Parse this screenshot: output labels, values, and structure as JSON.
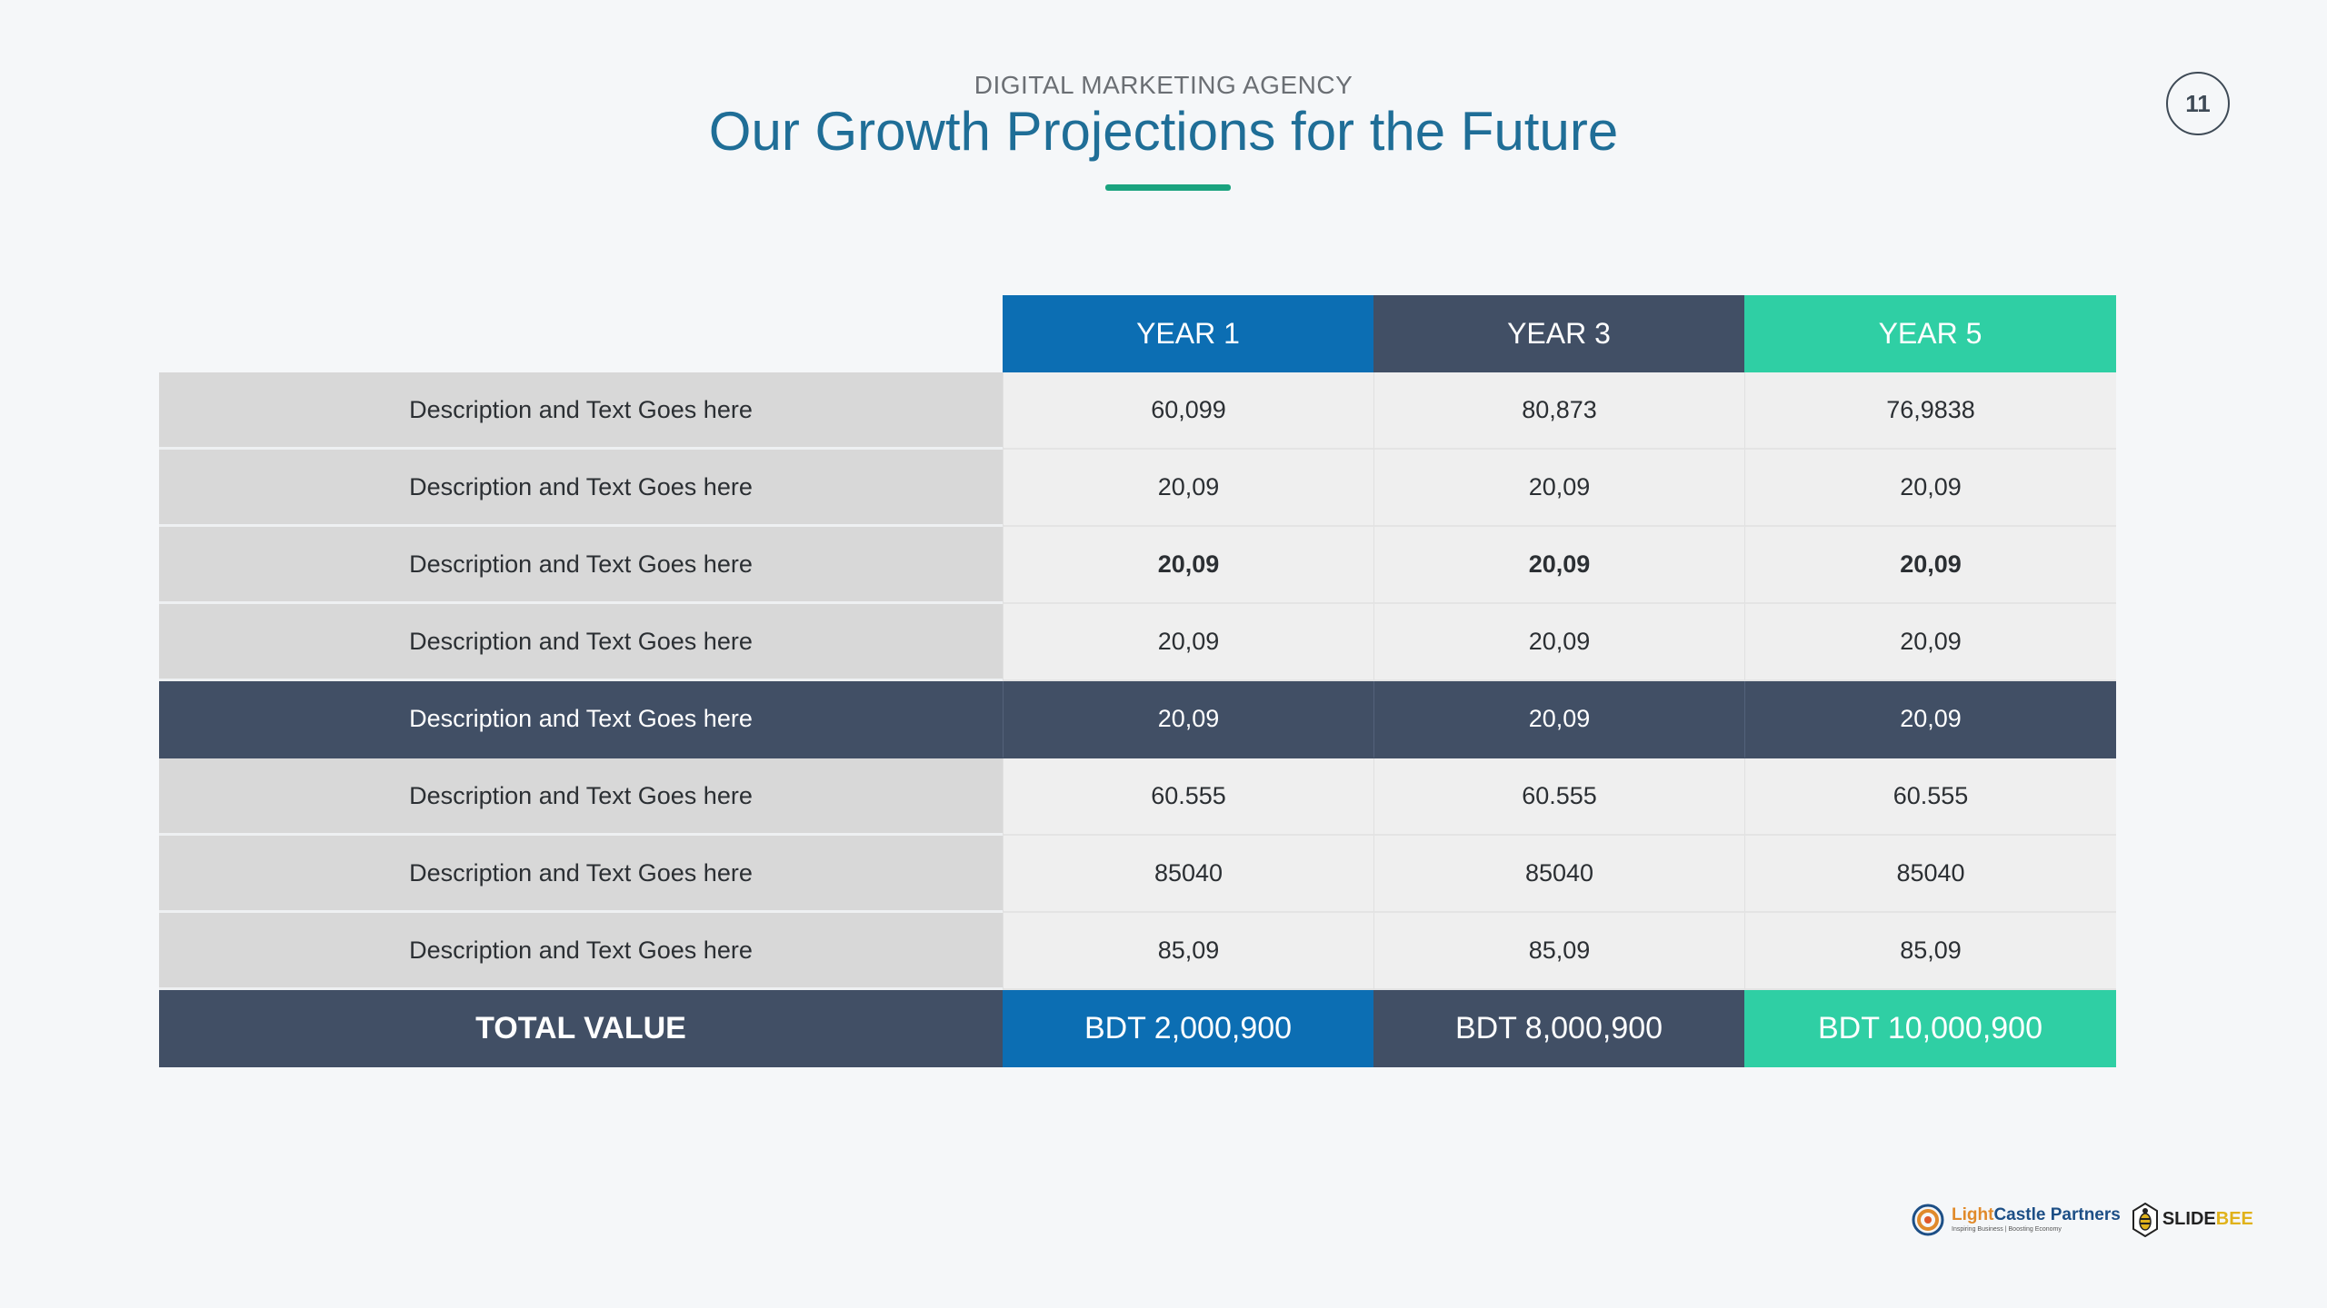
{
  "header": {
    "supertitle": "DIGITAL MARKETING AGENCY",
    "title": "Our Growth Projections for the Future",
    "page_number": "11"
  },
  "colors": {
    "title": "#1f6e97",
    "accent_underline": "#1aa37f",
    "year1": "#0c6eb3",
    "year3": "#414f65",
    "year5": "#2fcfa4",
    "desc_cell": "#d8d8d8",
    "value_cell": "#efefef"
  },
  "table": {
    "columns": [
      "YEAR 1",
      "YEAR 3",
      "YEAR 5"
    ],
    "rows": [
      {
        "label": "Description and Text Goes here",
        "values": [
          "60,099",
          "80,873",
          "76,9838"
        ]
      },
      {
        "label": "Description and Text Goes here",
        "values": [
          "20,09",
          "20,09",
          "20,09"
        ]
      },
      {
        "label": "Description and Text Goes here",
        "values": [
          "20,09",
          "20,09",
          "20,09"
        ]
      },
      {
        "label": "Description and Text Goes here",
        "values": [
          "20,09",
          "20,09",
          "20,09"
        ]
      },
      {
        "label": "Description and Text Goes here",
        "values": [
          "20,09",
          "20,09",
          "20,09"
        ]
      },
      {
        "label": "Description and Text Goes here",
        "values": [
          "60.555",
          "60.555",
          "60.555"
        ]
      },
      {
        "label": "Description and Text Goes here",
        "values": [
          "85040",
          "85040",
          "85040"
        ]
      },
      {
        "label": "Description and Text Goes here",
        "values": [
          "85,09",
          "85,09",
          "85,09"
        ]
      }
    ],
    "total": {
      "label": "TOTAL VALUE",
      "values": [
        "BDT 2,000,900",
        "BDT 8,000,900",
        "BDT 10,000,900"
      ]
    }
  },
  "footer": {
    "lightcastle_light": "Light",
    "lightcastle_rest": "Castle Partners",
    "lightcastle_tagline": "Inspiring Business | Boosting Economy",
    "slidebee_slide": "SLIDE",
    "slidebee_bee": "BEE"
  },
  "icons": {
    "page_badge": "page-number-circle",
    "lightcastle_logo": "lightcastle-logo-icon",
    "slidebee_logo": "slidebee-logo-icon"
  }
}
